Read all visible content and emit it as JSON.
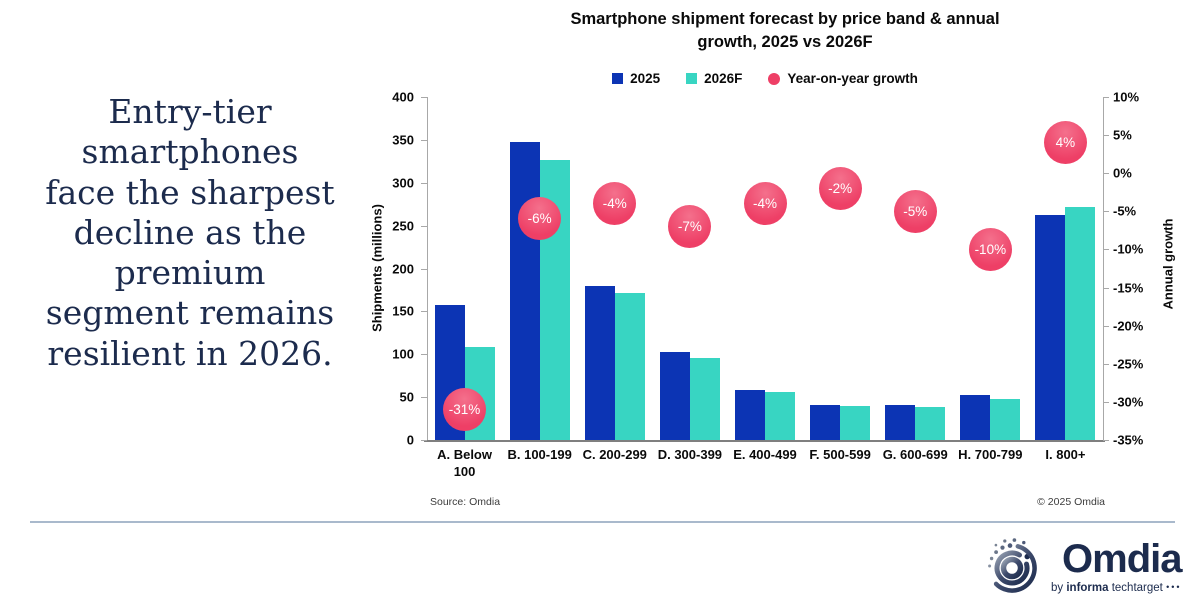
{
  "headline": "Entry-tier smartphones face the sharpest decline as the premium segment remains resilient in 2026.",
  "headline_lines": [
    "Entry-tier",
    "smartphones",
    "face the sharpest",
    "decline as the",
    "premium",
    "segment remains",
    "resilient in 2026."
  ],
  "chart": {
    "title_lines": [
      "Smartphone shipment forecast by price band & annual",
      "growth, 2025 vs 2026F"
    ],
    "legend": [
      {
        "label": "2025",
        "shape": "square",
        "color": "#0c34b4"
      },
      {
        "label": "2026F",
        "shape": "square",
        "color": "#38d5c2"
      },
      {
        "label": "Year-on-year growth",
        "shape": "circle",
        "color": "#ee3f66"
      }
    ],
    "source": "Source: Omdia",
    "copyright": "© 2025 Omdia"
  },
  "chart_data": {
    "type": "bar",
    "title": "Smartphone shipment forecast by price band & annual growth, 2025 vs 2026F",
    "categories": [
      "A. Below 100",
      "B. 100-199",
      "C. 200-299",
      "D. 300-399",
      "E. 400-499",
      "F. 500-599",
      "G. 600-699",
      "H. 700-799",
      "I. 800+"
    ],
    "series": [
      {
        "name": "2025",
        "color": "#0c34b4",
        "values": [
          157,
          347,
          180,
          103,
          58,
          41,
          41,
          53,
          262
        ]
      },
      {
        "name": "2026F",
        "color": "#38d5c2",
        "values": [
          108,
          326,
          172,
          96,
          56,
          40,
          39,
          48,
          272
        ]
      }
    ],
    "growth_bubbles": {
      "name": "Year-on-year growth",
      "color": "#ee3f66",
      "highlight_color": "#f4708c",
      "values": [
        -31,
        -6,
        -4,
        -7,
        -4,
        -2,
        -5,
        -10,
        4
      ],
      "labels": [
        "-31%",
        "-6%",
        "-4%",
        "-7%",
        "-4%",
        "-2%",
        "-5%",
        "-10%",
        "4%"
      ]
    },
    "ylabel": "Shipments (millions)",
    "y2label": "Annual growth",
    "ylim": [
      0,
      400
    ],
    "y2lim": [
      -35,
      10
    ],
    "yticks": [
      0,
      50,
      100,
      150,
      200,
      250,
      300,
      350,
      400
    ],
    "y2ticks": [
      10,
      5,
      0,
      -5,
      -10,
      -15,
      -20,
      -25,
      -30,
      -35
    ],
    "grid": false,
    "legend_position": "top"
  },
  "footer": {
    "logo_word": "Omdia",
    "logo_sub_by": "by ",
    "logo_sub_brand": "informa",
    "logo_sub_rest": " techtarget",
    "logo_dots": "•••",
    "brand_navy": "#1c2b4d"
  }
}
